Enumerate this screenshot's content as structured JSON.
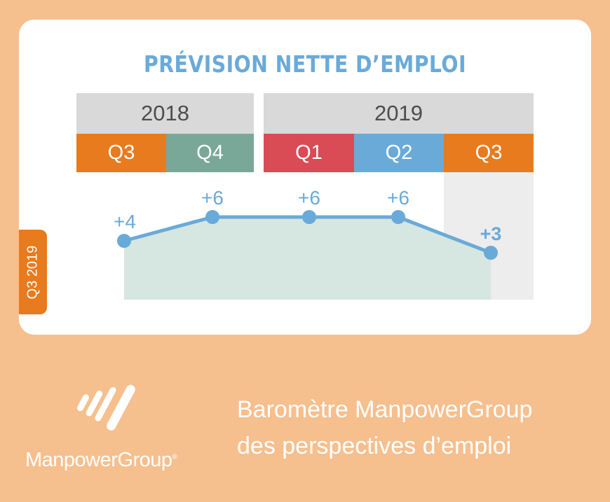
{
  "title": "PRÉVISION NETTE D’EMPLOI",
  "side_tab": "Q3 2019",
  "years": [
    {
      "label": "2018"
    },
    {
      "label": "2019"
    }
  ],
  "quarters": [
    {
      "label": "Q3",
      "color": "#e87b1e"
    },
    {
      "label": "Q4",
      "color": "#7aa898"
    },
    {
      "label": "Q1",
      "color": "#d94b55"
    },
    {
      "label": "Q2",
      "color": "#6aaad9"
    },
    {
      "label": "Q3",
      "color": "#e87b1e"
    }
  ],
  "chart_data": {
    "type": "area",
    "categories": [
      "Q3 2018",
      "Q4 2018",
      "Q1 2019",
      "Q2 2019",
      "Q3 2019"
    ],
    "values": [
      4,
      6,
      6,
      6,
      3
    ],
    "labels": [
      "+4",
      "+6",
      "+6",
      "+6",
      "+3"
    ],
    "highlight_last": true,
    "colors": {
      "line": "#6aaad9",
      "fill": "#d6e6e1",
      "highlight_bg": "#ededed"
    }
  },
  "brand": {
    "name": "ManpowerGroup",
    "reg": "®",
    "tagline_line1": "Baromètre ManpowerGroup",
    "tagline_line2": "des perspectives d’emploi"
  }
}
